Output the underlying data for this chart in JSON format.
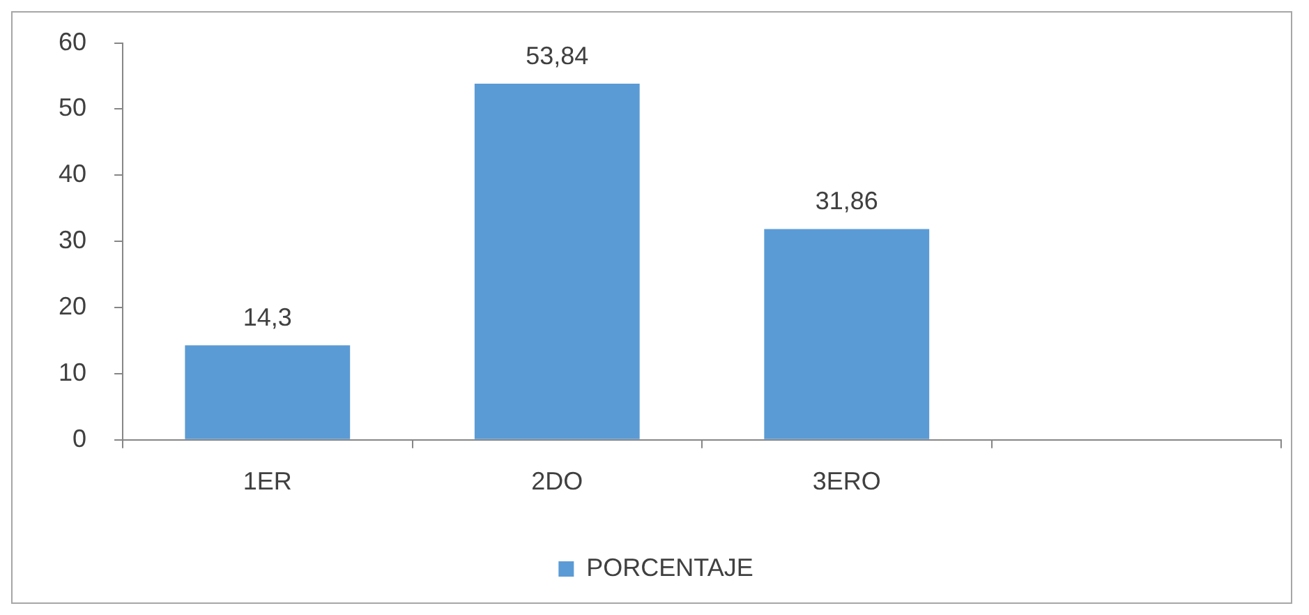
{
  "chart_data": {
    "type": "bar",
    "categories": [
      "1ER",
      "2DO",
      "3ERO",
      null
    ],
    "series": [
      {
        "name": "PORCENTAJE",
        "color": "#5b9bd5",
        "values": [
          14.3,
          53.84,
          31.86,
          null
        ],
        "value_labels": [
          "14,3",
          "53,84",
          "31,86",
          null
        ]
      }
    ],
    "ylim": [
      0,
      60
    ],
    "yticks": [
      0,
      10,
      20,
      30,
      40,
      50,
      60
    ],
    "grid": false,
    "legend": "bottom"
  }
}
